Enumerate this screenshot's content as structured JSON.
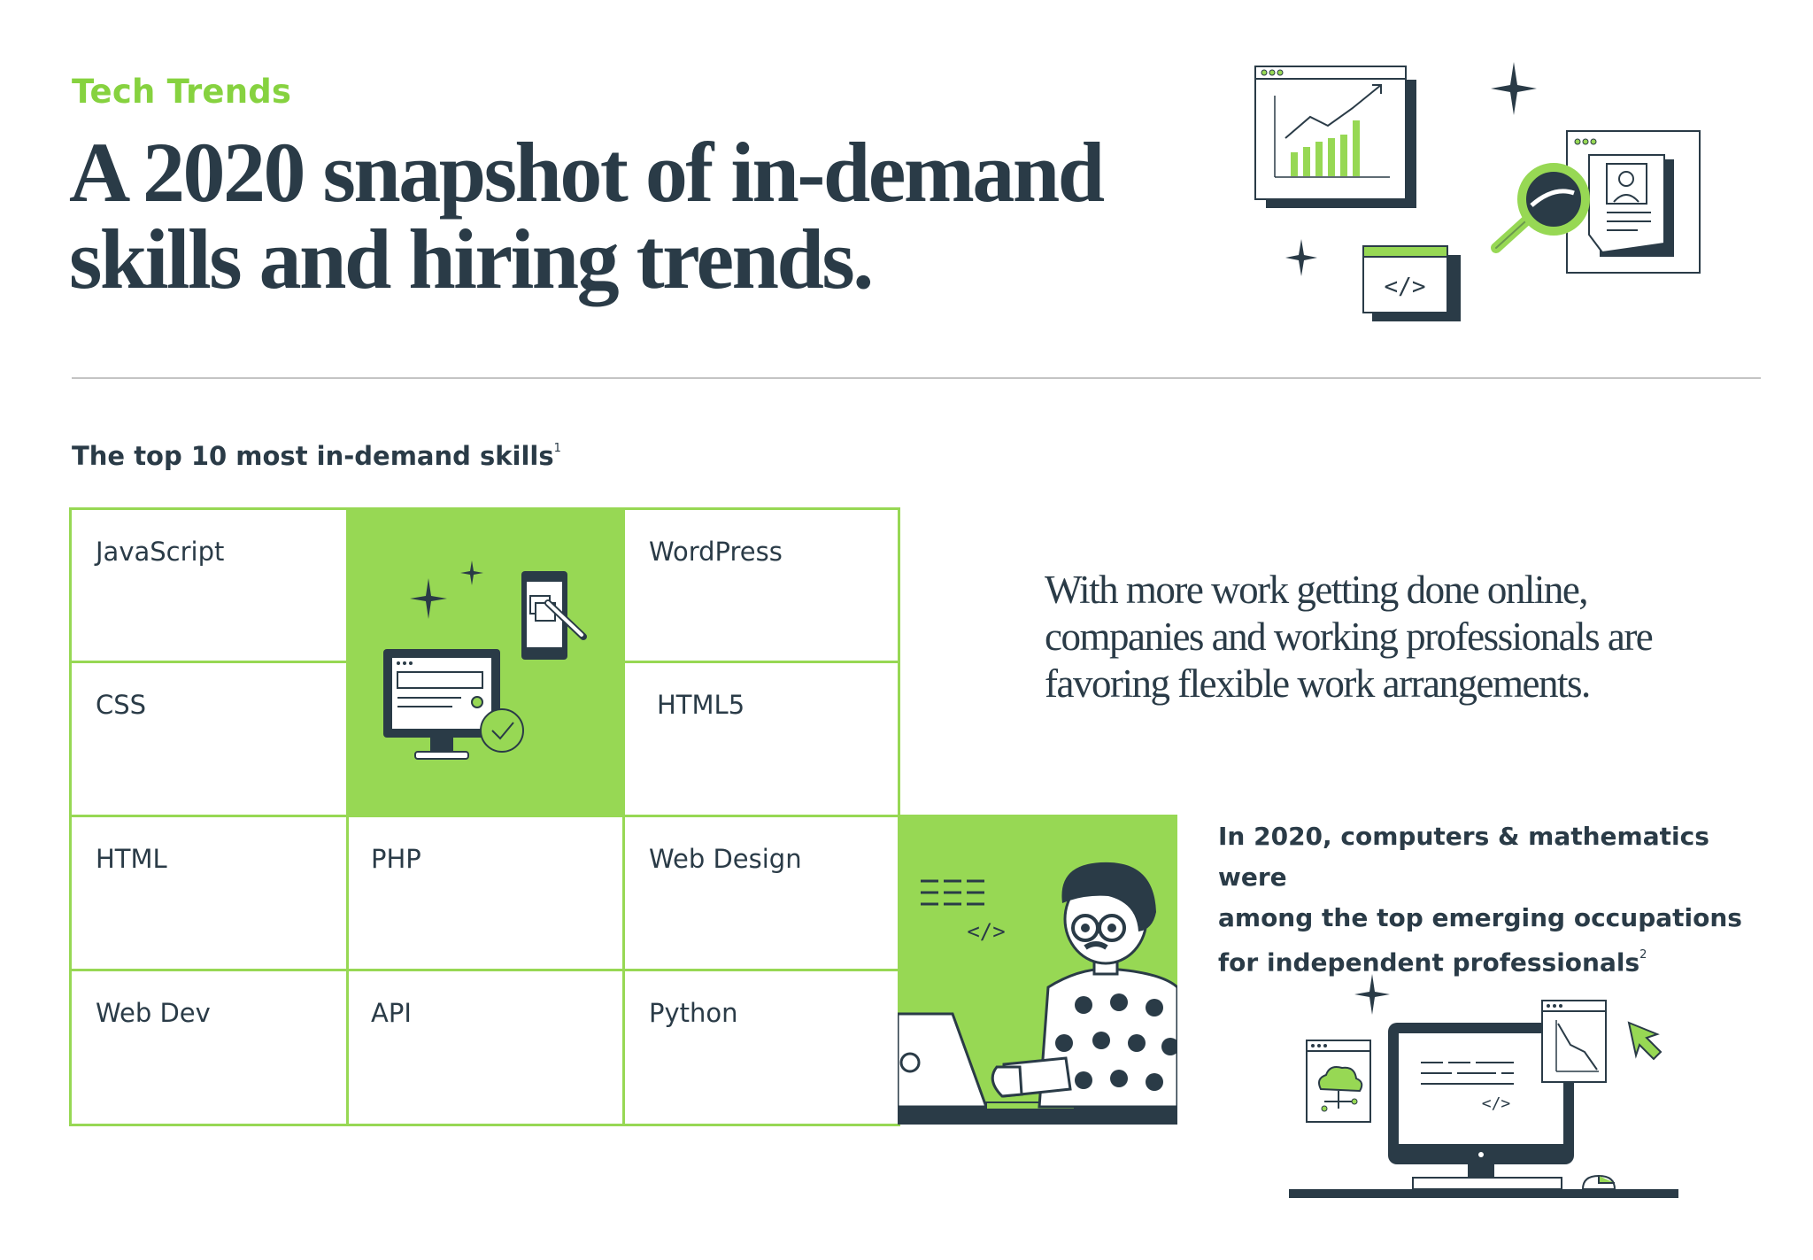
{
  "header": {
    "eyebrow": "Tech Trends",
    "headline_line1": "A 2020 snapshot of in-demand",
    "headline_line2": "skills and hiring trends."
  },
  "skills_section": {
    "label": "The top 10 most in-demand skills",
    "label_footnote": "1",
    "skills": [
      "JavaScript",
      "WordPress",
      "CSS",
      "HTML5",
      "HTML",
      "PHP",
      "Web Design",
      "Web Dev",
      "API",
      "Python"
    ]
  },
  "quote": {
    "line1": "With more work getting done online,",
    "line2": "companies and working professionals are",
    "line3": "favoring flexible work arrangements."
  },
  "occupations_note": {
    "line1": "In 2020, computers & mathematics were",
    "line2": "among the top emerging occupations",
    "line3": "for independent professionals",
    "footnote": "2"
  },
  "colors": {
    "accent_green": "#97d854",
    "eyebrow_green": "#86d23f",
    "navy": "#2a3b47",
    "divider": "#c4c4c4"
  },
  "icons": {
    "header_illustration": [
      "growth-chart-window-icon",
      "sparkle-icon",
      "code-window-icon",
      "magnifier-icon",
      "resume-document-icon"
    ],
    "grid_illustration": [
      "sparkle-icon",
      "mobile-phone-icon",
      "desktop-monitor-icon",
      "check-circle-icon"
    ],
    "person_illustration": [
      "developer-at-laptop-icon",
      "code-tag-icon"
    ],
    "workstation_illustration": [
      "cloud-window-icon",
      "desktop-monitor-icon",
      "chart-window-icon",
      "cursor-arrow-icon",
      "keyboard-icon",
      "mouse-icon"
    ]
  }
}
